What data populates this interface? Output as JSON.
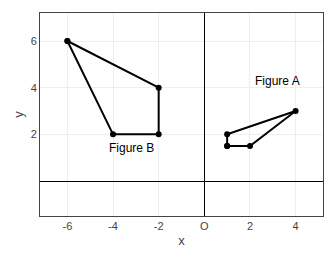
{
  "chart_data": {
    "type": "line",
    "series": [
      {
        "name": "Figure B",
        "color": "#000000",
        "x": [
          -6,
          -2,
          -2,
          -4,
          -6
        ],
        "values": [
          6,
          4,
          2,
          2,
          6
        ]
      },
      {
        "name": "Figure A",
        "color": "#000000",
        "x": [
          1,
          2,
          4,
          1,
          1
        ],
        "values": [
          1.5,
          1.5,
          3,
          2,
          1.5
        ]
      }
    ],
    "marker": "circle",
    "annotations": [
      {
        "text": "Figure A",
        "x": 3.2,
        "y": 4.3
      },
      {
        "text": "Figure B",
        "x": -3.2,
        "y": 1.4
      }
    ],
    "xlabel": "x",
    "ylabel": "y",
    "xlim": [
      -7.2,
      5.2
    ],
    "ylim": [
      -1.5,
      7.2
    ],
    "xticks": [
      -6,
      -4,
      -2,
      {
        "value": 0,
        "label": "O"
      },
      2,
      4
    ],
    "yticks": [
      2,
      4,
      6
    ],
    "grid": true
  }
}
